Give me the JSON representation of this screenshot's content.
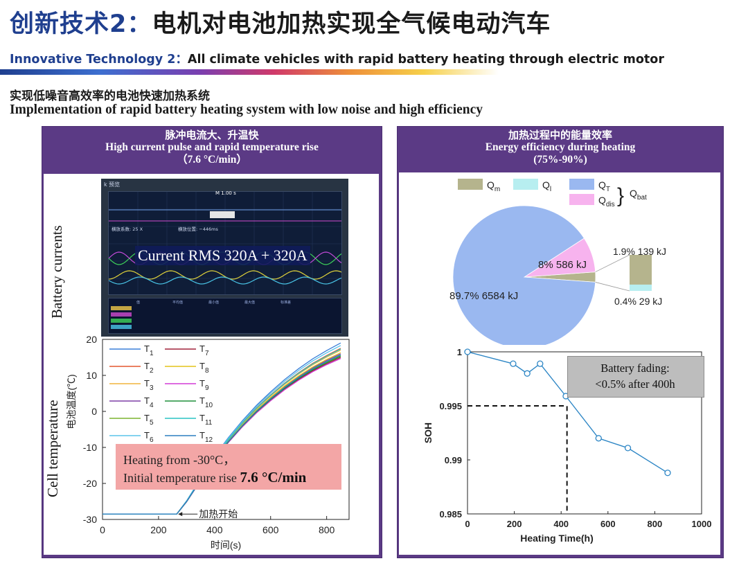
{
  "header": {
    "title_cn_a": "创新技术",
    "title_cn_num": "2：",
    "title_cn_b": "电机对电池加热实现全气候电动汽车",
    "title_en_a": "Innovative Technology 2：",
    "title_en_b": "All climate vehicles with rapid battery heating through electric motor",
    "subtitle_cn": "实现低噪音高效率的电池快速加热系统",
    "subtitle_en": "Implementation of rapid battery heating system with low noise and high efficiency"
  },
  "left_panel": {
    "head_cn": "脉冲电流大、升温快",
    "head_en": "High current pulse and rapid temperature rise",
    "head_rate": "（7.6 °C/min）",
    "battery_currents_label": "Battery currents",
    "osc_banner": "Current RMS 320A + 320A",
    "osc_top_left": "k 预览",
    "osc_marker": "M 1.00 s",
    "osc_scale": "横放系数: 25 X",
    "osc_pos": "横放位置: −446ms",
    "osc_table_headers": [
      "值",
      "平均值",
      "最小值",
      "最大值",
      "标准差"
    ],
    "cell_temperature_label": "Cell temperature",
    "heating_line1": "Heating from -30°C，",
    "heating_line2a": "Initial temperature rise ",
    "heating_line2b": "7.6 °C/min"
  },
  "right_panel": {
    "head_cn": "加热过程中的能量效率",
    "head_en": "Energy efficiency during heating",
    "head_range": "(75%-90%)",
    "fade_line1": "Battery fading:",
    "fade_line2": "<0.5% after 400h"
  },
  "colors": {
    "panel_purple": "#5b3a85",
    "title_blue": "#1f3f8f",
    "pie_qt": "#9ab8f0",
    "pie_qdis": "#f7b3ee",
    "pie_qm": "#b5b48d",
    "pie_ql": "#b7eef0",
    "soh_line": "#2d86c5",
    "heat_box": "#f3a6a6",
    "fade_box": "#bdbdbd"
  },
  "chart_data": [
    {
      "type": "line",
      "title": "",
      "xlabel": "时间(s)",
      "ylabel": "电池温度(℃)",
      "xlim": [
        0,
        880
      ],
      "ylim": [
        -30,
        20
      ],
      "xticks": [
        0,
        200,
        400,
        600,
        800
      ],
      "yticks": [
        -30,
        -20,
        -10,
        0,
        10,
        20
      ],
      "legend_position": "top-left",
      "annotation": "加热开始",
      "annotation_x": 265,
      "series": [
        {
          "name": "T1",
          "color": "#3a7ed8",
          "offset": 2.5
        },
        {
          "name": "T2",
          "color": "#e4562f",
          "offset": 1.0
        },
        {
          "name": "T3",
          "color": "#f0b33c",
          "offset": 0.5
        },
        {
          "name": "T4",
          "color": "#7d3fa6",
          "offset": -0.5
        },
        {
          "name": "T5",
          "color": "#7bb42e",
          "offset": -1.0
        },
        {
          "name": "T6",
          "color": "#5ac3ea",
          "offset": 1.8
        },
        {
          "name": "T7",
          "color": "#a0203a",
          "offset": -1.5
        },
        {
          "name": "T8",
          "color": "#e4c319",
          "offset": -0.2
        },
        {
          "name": "T9",
          "color": "#d23ad6",
          "offset": -1.8
        },
        {
          "name": "T10",
          "color": "#1f8f3a",
          "offset": -1.2
        },
        {
          "name": "T11",
          "color": "#28c4c4",
          "offset": 0.8
        },
        {
          "name": "T12",
          "color": "#2b7fc0",
          "offset": -0.8
        }
      ],
      "base_curve": {
        "x": [
          0,
          265,
          300,
          350,
          400,
          450,
          500,
          550,
          600,
          650,
          700,
          750,
          800,
          850
        ],
        "y": [
          -28.5,
          -28.5,
          -25,
          -19,
          -13,
          -8,
          -3.5,
          0.5,
          4,
          7.2,
          10,
          12.5,
          14.6,
          16.5
        ]
      }
    },
    {
      "type": "pie",
      "title": "",
      "legend": [
        {
          "label": "Q",
          "sub": "m"
        },
        {
          "label": "Q",
          "sub": "l"
        },
        {
          "label": "Q",
          "sub": "T"
        },
        {
          "label": "Q",
          "sub": "dis"
        }
      ],
      "legend_group": {
        "label": "Q",
        "sub": "bat"
      },
      "legend_position": "top",
      "slices": [
        {
          "name": "QT",
          "percent": 89.7,
          "energy_kJ": 6584,
          "label": "89.7% 6584 kJ"
        },
        {
          "name": "Qdis",
          "percent": 8.0,
          "energy_kJ": 586,
          "label": "8% 586 kJ"
        },
        {
          "name": "Qm",
          "percent": 1.9,
          "energy_kJ": 139,
          "label": "1.9% 139 kJ"
        },
        {
          "name": "Ql",
          "percent": 0.4,
          "energy_kJ": 29,
          "label": "0.4% 29 kJ"
        }
      ]
    },
    {
      "type": "line",
      "title": "",
      "xlabel": "Heating Time(h)",
      "ylabel": "SOH",
      "xlim": [
        0,
        1000
      ],
      "ylim": [
        0.985,
        1.0
      ],
      "xticks": [
        0,
        200,
        400,
        600,
        800,
        1000
      ],
      "yticks": [
        0.985,
        0.99,
        0.995,
        1
      ],
      "xtick_labels": [
        "0",
        "200",
        "400",
        "600",
        "800",
        "1000"
      ],
      "ytick_labels": [
        "0.985",
        "0.99",
        "0.995",
        "1"
      ],
      "reference_point": {
        "x": 425,
        "y": 0.995
      },
      "series": [
        {
          "name": "",
          "x": [
            0,
            195,
            255,
            310,
            420,
            560,
            685,
            855
          ],
          "y": [
            1.0,
            0.9989,
            0.998,
            0.9989,
            0.9959,
            0.992,
            0.9911,
            0.9888
          ]
        }
      ]
    }
  ]
}
